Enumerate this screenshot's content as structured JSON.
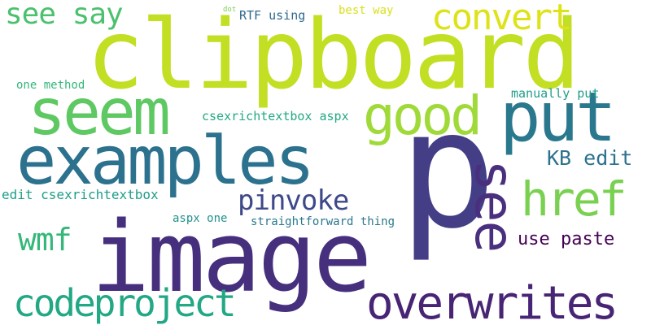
{
  "words": [
    {
      "text": "clipboard",
      "color": "#c2df23"
    },
    {
      "text": "p",
      "color": "#433e85"
    },
    {
      "text": "image",
      "color": "#46307e"
    },
    {
      "text": "examples",
      "color": "#2c728e"
    },
    {
      "text": "seem",
      "color": "#5ec962"
    },
    {
      "text": "put",
      "color": "#2a788e"
    },
    {
      "text": "good",
      "color": "#a0da39"
    },
    {
      "text": "see",
      "color": "#4a2f7f"
    },
    {
      "text": "overwrites",
      "color": "#482475"
    },
    {
      "text": "codeproject",
      "color": "#22a884"
    },
    {
      "text": "href",
      "color": "#7ad151"
    },
    {
      "text": "convert",
      "color": "#dde318"
    },
    {
      "text": "see say",
      "color": "#4ac16d"
    },
    {
      "text": "pinvoke",
      "color": "#3e4989"
    },
    {
      "text": "wmf",
      "color": "#35b779"
    },
    {
      "text": "KB edit",
      "color": "#2c728e"
    },
    {
      "text": "use paste",
      "color": "#440154"
    },
    {
      "text": "edit csexrichtextbox",
      "color": "#1f9e89"
    },
    {
      "text": "csexrichtextbox aspx",
      "color": "#22a884"
    },
    {
      "text": "manually put",
      "color": "#1f9e89"
    },
    {
      "text": "RTF using",
      "color": "#31688e"
    },
    {
      "text": "best way",
      "color": "#d8e219"
    },
    {
      "text": "one method",
      "color": "#35b779"
    },
    {
      "text": "aspx one",
      "color": "#21918c"
    },
    {
      "text": "straightforward thing",
      "color": "#2a788e"
    },
    {
      "text": "dot",
      "color": "#7ad151"
    }
  ]
}
